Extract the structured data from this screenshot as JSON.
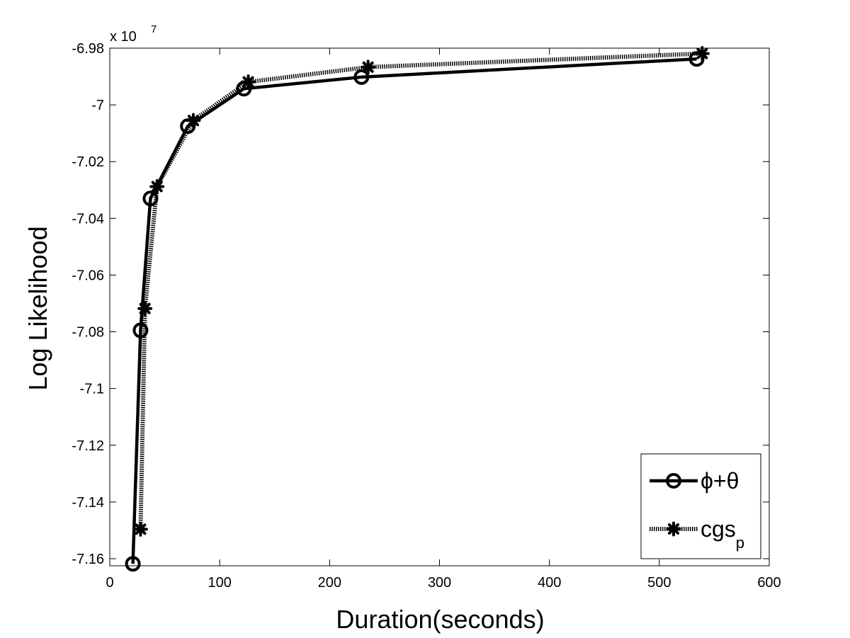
{
  "chart_data": {
    "type": "line",
    "xlabel": "Duration(seconds)",
    "ylabel": "Log Likelihood",
    "y_exponent": {
      "base": "x 10",
      "power": "7"
    },
    "xlim": [
      0,
      600
    ],
    "ylim": [
      -7.1625,
      -6.98
    ],
    "x_ticks": [
      {
        "value": 0,
        "label": "0"
      },
      {
        "value": 100,
        "label": "100"
      },
      {
        "value": 200,
        "label": "200"
      },
      {
        "value": 300,
        "label": "300"
      },
      {
        "value": 400,
        "label": "400"
      },
      {
        "value": 500,
        "label": "500"
      },
      {
        "value": 600,
        "label": "600"
      }
    ],
    "y_ticks": [
      {
        "value": -6.98,
        "label": "-6.98"
      },
      {
        "value": -7.0,
        "label": "-7"
      },
      {
        "value": -7.02,
        "label": "-7.02"
      },
      {
        "value": -7.04,
        "label": "-7.04"
      },
      {
        "value": -7.06,
        "label": "-7.06"
      },
      {
        "value": -7.08,
        "label": "-7.08"
      },
      {
        "value": -7.1,
        "label": "-7.1"
      },
      {
        "value": -7.12,
        "label": "-7.12"
      },
      {
        "value": -7.14,
        "label": "-7.14"
      },
      {
        "value": -7.16,
        "label": "-7.16"
      }
    ],
    "grid": false,
    "legend_position": "bottom-right",
    "series": [
      {
        "name": "ϕ+θ",
        "legend_main": "ϕ+θ",
        "legend_sub": "",
        "marker": "circle",
        "line": "solid-thick",
        "x": [
          21,
          28,
          37,
          71,
          122,
          229,
          534
        ],
        "y": [
          -7.1618,
          -7.0795,
          -7.033,
          -7.0075,
          -6.9943,
          -6.9902,
          -6.9838
        ]
      },
      {
        "name": "cgsp",
        "legend_main": "cgs",
        "legend_sub": "p",
        "marker": "asterisk",
        "line": "dotted",
        "x": [
          28,
          32,
          43,
          76,
          126,
          235,
          539
        ],
        "y": [
          -7.1496,
          -7.0718,
          -7.0288,
          -7.0055,
          -6.9919,
          -6.9867,
          -6.9819
        ]
      }
    ],
    "colors": {
      "line": "#000000",
      "background": "#ffffff",
      "frame": "#000000"
    }
  }
}
